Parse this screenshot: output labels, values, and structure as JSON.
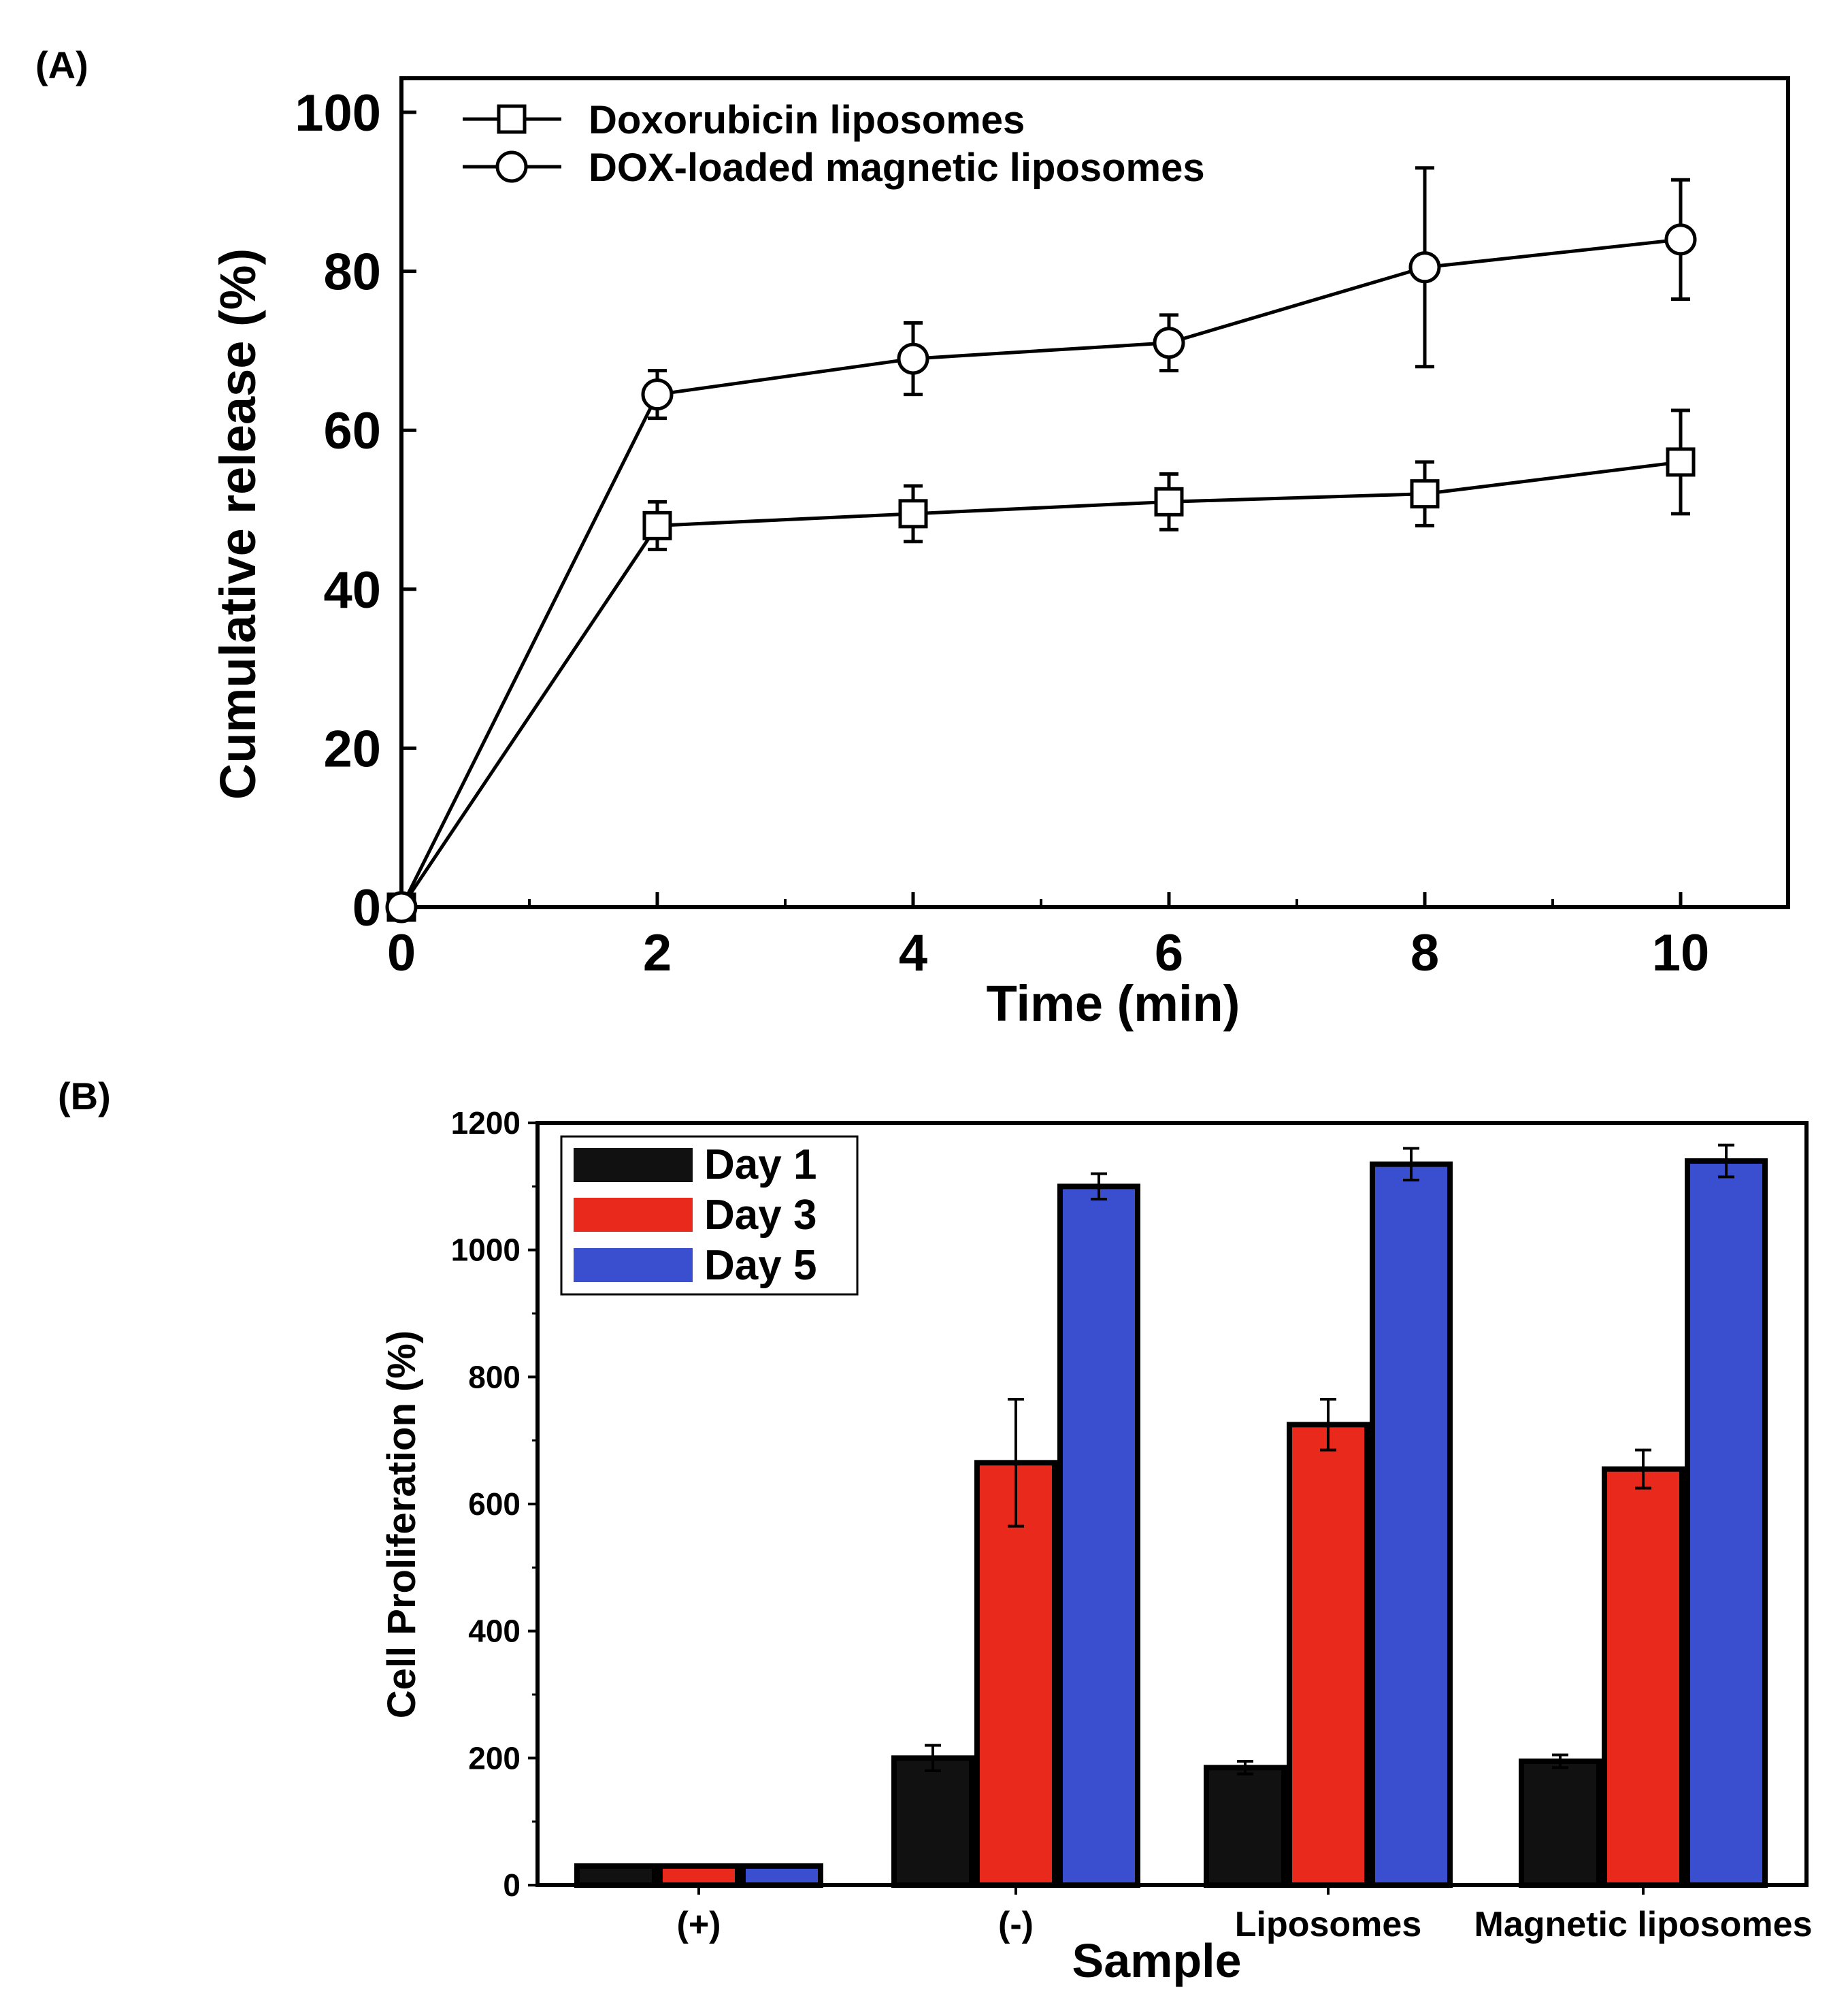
{
  "colors": {
    "axis": "#000000",
    "day1": "#111111",
    "day3": "#e8291c",
    "day5": "#3a4fd0",
    "background": "#ffffff"
  },
  "chart_data": [
    {
      "panel": "(A)",
      "type": "line",
      "xlabel": "Time (min)",
      "ylabel": "Cumulative release (%)",
      "xlim": [
        0,
        10.9
      ],
      "ylim": [
        0,
        100
      ],
      "xticks": [
        0,
        2,
        4,
        6,
        8,
        10
      ],
      "yticks": [
        0,
        20,
        40,
        60,
        80,
        100
      ],
      "legend_position": "top-left",
      "series": [
        {
          "name": "Doxorubicin liposomes",
          "marker": "square",
          "x": [
            0,
            2,
            4,
            6,
            8,
            10
          ],
          "y": [
            0,
            48,
            49.5,
            51,
            52,
            56
          ],
          "err": [
            0,
            3,
            3.5,
            3.5,
            4,
            6.5
          ]
        },
        {
          "name": "DOX-loaded magnetic liposomes",
          "marker": "circle",
          "x": [
            0,
            2,
            4,
            6,
            8,
            10
          ],
          "y": [
            0,
            64.5,
            69,
            71,
            80.5,
            84
          ],
          "err": [
            0,
            3,
            4.5,
            3.5,
            12.5,
            7.5
          ]
        }
      ]
    },
    {
      "panel": "(B)",
      "type": "bar",
      "xlabel": "Sample",
      "ylabel": "Cell Proliferation (%)",
      "ylim": [
        0,
        1200
      ],
      "yticks": [
        0,
        200,
        400,
        600,
        800,
        1000,
        1200
      ],
      "categories": [
        "(+)",
        "(-)",
        "Liposomes",
        "Magnetic liposomes"
      ],
      "legend_position": "top-left",
      "series": [
        {
          "name": "Day 1",
          "values": [
            30,
            200,
            185,
            195
          ],
          "err": [
            0,
            20,
            10,
            10
          ]
        },
        {
          "name": "Day 3",
          "values": [
            30,
            665,
            725,
            655
          ],
          "err": [
            0,
            100,
            40,
            30
          ]
        },
        {
          "name": "Day 5",
          "values": [
            30,
            1100,
            1135,
            1140
          ],
          "err": [
            0,
            20,
            25,
            25
          ]
        }
      ]
    }
  ]
}
